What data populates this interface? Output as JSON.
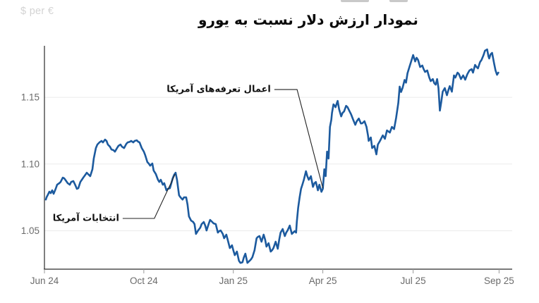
{
  "header": {
    "title": "نمودار ارزش دلار نسبت به یورو",
    "unit_label": "$ per €"
  },
  "chart_data": {
    "type": "line",
    "title": "نمودار ارزش دلار نسبت به یورو",
    "xlabel": "",
    "ylabel": "$ per €",
    "x_unit": "days from Jun 2024 axis origin",
    "x_range_days": [
      0,
      474
    ],
    "y_range": [
      1.0212,
      1.1886
    ],
    "grid": "horizontal-only",
    "legend": "none",
    "colors": {
      "line": "#1c5a9e",
      "grid": "#ebebeb",
      "axis": "#2b2b2b",
      "tick": "#999999",
      "tick_label": "#6b6b6b",
      "annotation_line": "#222222"
    },
    "x_ticks": [
      {
        "day": 0,
        "label": "Jun 24"
      },
      {
        "day": 100.7,
        "label": "Oct 24"
      },
      {
        "day": 191.4,
        "label": "Jan 25"
      },
      {
        "day": 282.1,
        "label": "Apr 25"
      },
      {
        "day": 373.6,
        "label": "Jul 25"
      },
      {
        "day": 460.7,
        "label": "Sep 25"
      }
    ],
    "y_ticks": [
      {
        "value": 1.05,
        "label": "1.05"
      },
      {
        "value": 1.1,
        "label": "1.10"
      },
      {
        "value": 1.15,
        "label": "1.15"
      }
    ],
    "annotations": [
      {
        "label": "اعمال تعرفه‌های آمریکا",
        "line": [
          [
            233,
            1.1558
          ],
          [
            256,
            1.1558
          ],
          [
            282.1,
            1.082
          ]
        ]
      },
      {
        "label": "انتخابات آمریکا",
        "line": [
          [
            79.3,
            1.0592
          ],
          [
            111.4,
            1.0592
          ],
          [
            132.5,
            1.0925
          ]
        ]
      }
    ],
    "series": [
      {
        "name": "USD per EUR",
        "points": [
          [
            1.4,
            1.0734
          ],
          [
            2.1,
            1.075
          ],
          [
            3.6,
            1.0771
          ],
          [
            5,
            1.0793
          ],
          [
            6.4,
            1.0782
          ],
          [
            7.9,
            1.0803
          ],
          [
            9.3,
            1.0777
          ],
          [
            11.4,
            1.0814
          ],
          [
            12.9,
            1.0845
          ],
          [
            15,
            1.0856
          ],
          [
            16.4,
            1.0866
          ],
          [
            18.6,
            1.0898
          ],
          [
            20,
            1.0893
          ],
          [
            22.1,
            1.0872
          ],
          [
            23.6,
            1.0856
          ],
          [
            25.7,
            1.0845
          ],
          [
            27.1,
            1.0866
          ],
          [
            29.3,
            1.0872
          ],
          [
            31.4,
            1.084
          ],
          [
            32.9,
            1.0814
          ],
          [
            34.3,
            1.0819
          ],
          [
            36.4,
            1.0866
          ],
          [
            37.9,
            1.0882
          ],
          [
            39.3,
            1.0898
          ],
          [
            41.4,
            1.0919
          ],
          [
            42.9,
            1.0935
          ],
          [
            45,
            1.0919
          ],
          [
            46.4,
            1.0909
          ],
          [
            48.6,
            1.0961
          ],
          [
            50,
            1.1041
          ],
          [
            52.1,
            1.112
          ],
          [
            53.6,
            1.1146
          ],
          [
            55.7,
            1.1162
          ],
          [
            57.9,
            1.1173
          ],
          [
            59.3,
            1.1162
          ],
          [
            61.4,
            1.1183
          ],
          [
            62.9,
            1.1173
          ],
          [
            64.3,
            1.1146
          ],
          [
            66.4,
            1.113
          ],
          [
            67.9,
            1.1109
          ],
          [
            70,
            1.1104
          ],
          [
            71.4,
            1.1093
          ],
          [
            73.6,
            1.112
          ],
          [
            75,
            1.1136
          ],
          [
            77.1,
            1.1146
          ],
          [
            78.6,
            1.113
          ],
          [
            80.7,
            1.112
          ],
          [
            82.9,
            1.1151
          ],
          [
            84.3,
            1.1162
          ],
          [
            86.4,
            1.1167
          ],
          [
            87.9,
            1.1173
          ],
          [
            90,
            1.1162
          ],
          [
            91.4,
            1.1173
          ],
          [
            93.6,
            1.1178
          ],
          [
            95,
            1.1167
          ],
          [
            96.4,
            1.1162
          ],
          [
            98.6,
            1.112
          ],
          [
            100.7,
            1.1093
          ],
          [
            102.1,
            1.1067
          ],
          [
            104.3,
            1.1014
          ],
          [
            105.7,
            1.1004
          ],
          [
            107.1,
            1.0988
          ],
          [
            109.3,
            1.1004
          ],
          [
            110.7,
            1.0951
          ],
          [
            112.9,
            1.0925
          ],
          [
            115,
            1.0882
          ],
          [
            116.4,
            1.0866
          ],
          [
            117.9,
            1.0882
          ],
          [
            120,
            1.0845
          ],
          [
            121.4,
            1.0856
          ],
          [
            123.6,
            1.0803
          ],
          [
            125,
            1.0814
          ],
          [
            127.1,
            1.0819
          ],
          [
            128.6,
            1.0856
          ],
          [
            130,
            1.0893
          ],
          [
            131.4,
            1.0919
          ],
          [
            132.9,
            1.0935
          ],
          [
            134.3,
            1.0882
          ],
          [
            136.4,
            1.0766
          ],
          [
            137.9,
            1.075
          ],
          [
            140,
            1.0734
          ],
          [
            141.4,
            1.075
          ],
          [
            143.6,
            1.075
          ],
          [
            145,
            1.0697
          ],
          [
            146.4,
            1.0608
          ],
          [
            148.6,
            1.0576
          ],
          [
            150.7,
            1.0566
          ],
          [
            152.1,
            1.055
          ],
          [
            153.6,
            1.0476
          ],
          [
            155.7,
            1.0502
          ],
          [
            157.9,
            1.0523
          ],
          [
            159.3,
            1.055
          ],
          [
            161.4,
            1.0566
          ],
          [
            162.9,
            1.0539
          ],
          [
            164.3,
            1.0502
          ],
          [
            166.4,
            1.055
          ],
          [
            167.9,
            1.0581
          ],
          [
            170,
            1.0566
          ],
          [
            171.4,
            1.0555
          ],
          [
            173.6,
            1.055
          ],
          [
            175.7,
            1.0486
          ],
          [
            177.1,
            1.0497
          ],
          [
            178.6,
            1.0502
          ],
          [
            180.7,
            1.0476
          ],
          [
            182.1,
            1.0444
          ],
          [
            184.3,
            1.0471
          ],
          [
            185.7,
            1.0434
          ],
          [
            187.9,
            1.037
          ],
          [
            190,
            1.0391
          ],
          [
            191.4,
            1.0354
          ],
          [
            192.9,
            1.0317
          ],
          [
            195,
            1.0344
          ],
          [
            197.1,
            1.0275
          ],
          [
            198.6,
            1.0259
          ],
          [
            200.7,
            1.0264
          ],
          [
            202.1,
            1.0301
          ],
          [
            203.6,
            1.0328
          ],
          [
            205.7,
            1.0259
          ],
          [
            207.9,
            1.0275
          ],
          [
            209.3,
            1.0286
          ],
          [
            210.7,
            1.0301
          ],
          [
            212.9,
            1.0354
          ],
          [
            215,
            1.0444
          ],
          [
            216.4,
            1.0455
          ],
          [
            217.9,
            1.046
          ],
          [
            220,
            1.0418
          ],
          [
            222.1,
            1.0471
          ],
          [
            223.6,
            1.0434
          ],
          [
            225,
            1.0381
          ],
          [
            227.1,
            1.0407
          ],
          [
            229.3,
            1.0344
          ],
          [
            230.7,
            1.0354
          ],
          [
            232.1,
            1.037
          ],
          [
            234.3,
            1.0418
          ],
          [
            236.4,
            1.0365
          ],
          [
            237.9,
            1.0434
          ],
          [
            239.3,
            1.0486
          ],
          [
            241.4,
            1.0513
          ],
          [
            243.6,
            1.046
          ],
          [
            245,
            1.0486
          ],
          [
            246.4,
            1.0502
          ],
          [
            248.6,
            1.0539
          ],
          [
            250.7,
            1.0476
          ],
          [
            252.1,
            1.0486
          ],
          [
            253.6,
            1.0497
          ],
          [
            255,
            1.0486
          ],
          [
            255.7,
            1.0566
          ],
          [
            257.1,
            1.0671
          ],
          [
            258.6,
            1.075
          ],
          [
            260,
            1.0814
          ],
          [
            261.4,
            1.0845
          ],
          [
            262.9,
            1.0882
          ],
          [
            265,
            1.0946
          ],
          [
            266.4,
            1.0909
          ],
          [
            267.9,
            1.0882
          ],
          [
            270,
            1.0909
          ],
          [
            272.1,
            1.0829
          ],
          [
            273.6,
            1.0856
          ],
          [
            275,
            1.0866
          ],
          [
            277.1,
            1.0803
          ],
          [
            278.6,
            1.0845
          ],
          [
            280.7,
            1.0792
          ],
          [
            282.1,
            1.0814
          ],
          [
            283.6,
            1.0961
          ],
          [
            285,
            1.0909
          ],
          [
            286.4,
            1.1093
          ],
          [
            287.9,
            1.1041
          ],
          [
            289.3,
            1.1278
          ],
          [
            290.7,
            1.1331
          ],
          [
            291.4,
            1.1384
          ],
          [
            292.9,
            1.1447
          ],
          [
            294.3,
            1.1436
          ],
          [
            295,
            1.1426
          ],
          [
            296.4,
            1.1458
          ],
          [
            297.1,
            1.1473
          ],
          [
            298.6,
            1.141
          ],
          [
            300.7,
            1.1357
          ],
          [
            302.1,
            1.1384
          ],
          [
            303.6,
            1.1394
          ],
          [
            305.7,
            1.1436
          ],
          [
            307.1,
            1.1426
          ],
          [
            309.3,
            1.1394
          ],
          [
            310.7,
            1.1373
          ],
          [
            312.9,
            1.1331
          ],
          [
            315,
            1.1294
          ],
          [
            316.4,
            1.132
          ],
          [
            318.6,
            1.1341
          ],
          [
            320.7,
            1.1304
          ],
          [
            322.1,
            1.1305
          ],
          [
            324.3,
            1.1321
          ],
          [
            326.4,
            1.1278
          ],
          [
            327.9,
            1.1215
          ],
          [
            328.6,
            1.1173
          ],
          [
            330.7,
            1.1199
          ],
          [
            332.1,
            1.112
          ],
          [
            334.3,
            1.1136
          ],
          [
            336.4,
            1.1072
          ],
          [
            337.9,
            1.1146
          ],
          [
            340,
            1.1173
          ],
          [
            342.9,
            1.1215
          ],
          [
            345,
            1.1189
          ],
          [
            347.1,
            1.1252
          ],
          [
            350,
            1.1236
          ],
          [
            352.1,
            1.1278
          ],
          [
            354.3,
            1.1262
          ],
          [
            356.4,
            1.1347
          ],
          [
            358.6,
            1.1458
          ],
          [
            360,
            1.158
          ],
          [
            361.4,
            1.154
          ],
          [
            362.9,
            1.157
          ],
          [
            365,
            1.163
          ],
          [
            366.4,
            1.161
          ],
          [
            367.9,
            1.168
          ],
          [
            370,
            1.173
          ],
          [
            371.4,
            1.1764
          ],
          [
            373.6,
            1.1817
          ],
          [
            375.7,
            1.1769
          ],
          [
            377.1,
            1.1796
          ],
          [
            378.6,
            1.178
          ],
          [
            380.7,
            1.1727
          ],
          [
            382.9,
            1.1738
          ],
          [
            384.3,
            1.1711
          ],
          [
            385.7,
            1.169
          ],
          [
            387.9,
            1.1701
          ],
          [
            390,
            1.1648
          ],
          [
            391.4,
            1.1621
          ],
          [
            393.6,
            1.1637
          ],
          [
            395,
            1.1606
          ],
          [
            396.4,
            1.1595
          ],
          [
            397.9,
            1.1637
          ],
          [
            399.3,
            1.1569
          ],
          [
            400.7,
            1.14
          ],
          [
            402.1,
            1.1463
          ],
          [
            403.6,
            1.1542
          ],
          [
            405.7,
            1.1569
          ],
          [
            407.9,
            1.1516
          ],
          [
            409.3,
            1.1553
          ],
          [
            410.7,
            1.1584
          ],
          [
            412.9,
            1.1542
          ],
          [
            415,
            1.1664
          ],
          [
            416.4,
            1.1648
          ],
          [
            418.6,
            1.1685
          ],
          [
            420,
            1.1674
          ],
          [
            422.1,
            1.1637
          ],
          [
            424.3,
            1.1664
          ],
          [
            426.4,
            1.1632
          ],
          [
            428.6,
            1.1674
          ],
          [
            430.7,
            1.1701
          ],
          [
            432.9,
            1.1711
          ],
          [
            434.3,
            1.1685
          ],
          [
            436.4,
            1.1743
          ],
          [
            437.9,
            1.1727
          ],
          [
            439.3,
            1.1717
          ],
          [
            441.4,
            1.1764
          ],
          [
            442.9,
            1.178
          ],
          [
            445,
            1.1817
          ],
          [
            446.4,
            1.1849
          ],
          [
            448.6,
            1.1859
          ],
          [
            450,
            1.1806
          ],
          [
            450.7,
            1.1791
          ],
          [
            452.1,
            1.1822
          ],
          [
            453.6,
            1.1833
          ],
          [
            455.7,
            1.1753
          ],
          [
            457.1,
            1.1701
          ],
          [
            458.6,
            1.1669
          ],
          [
            460,
            1.1685
          ]
        ]
      }
    ]
  }
}
